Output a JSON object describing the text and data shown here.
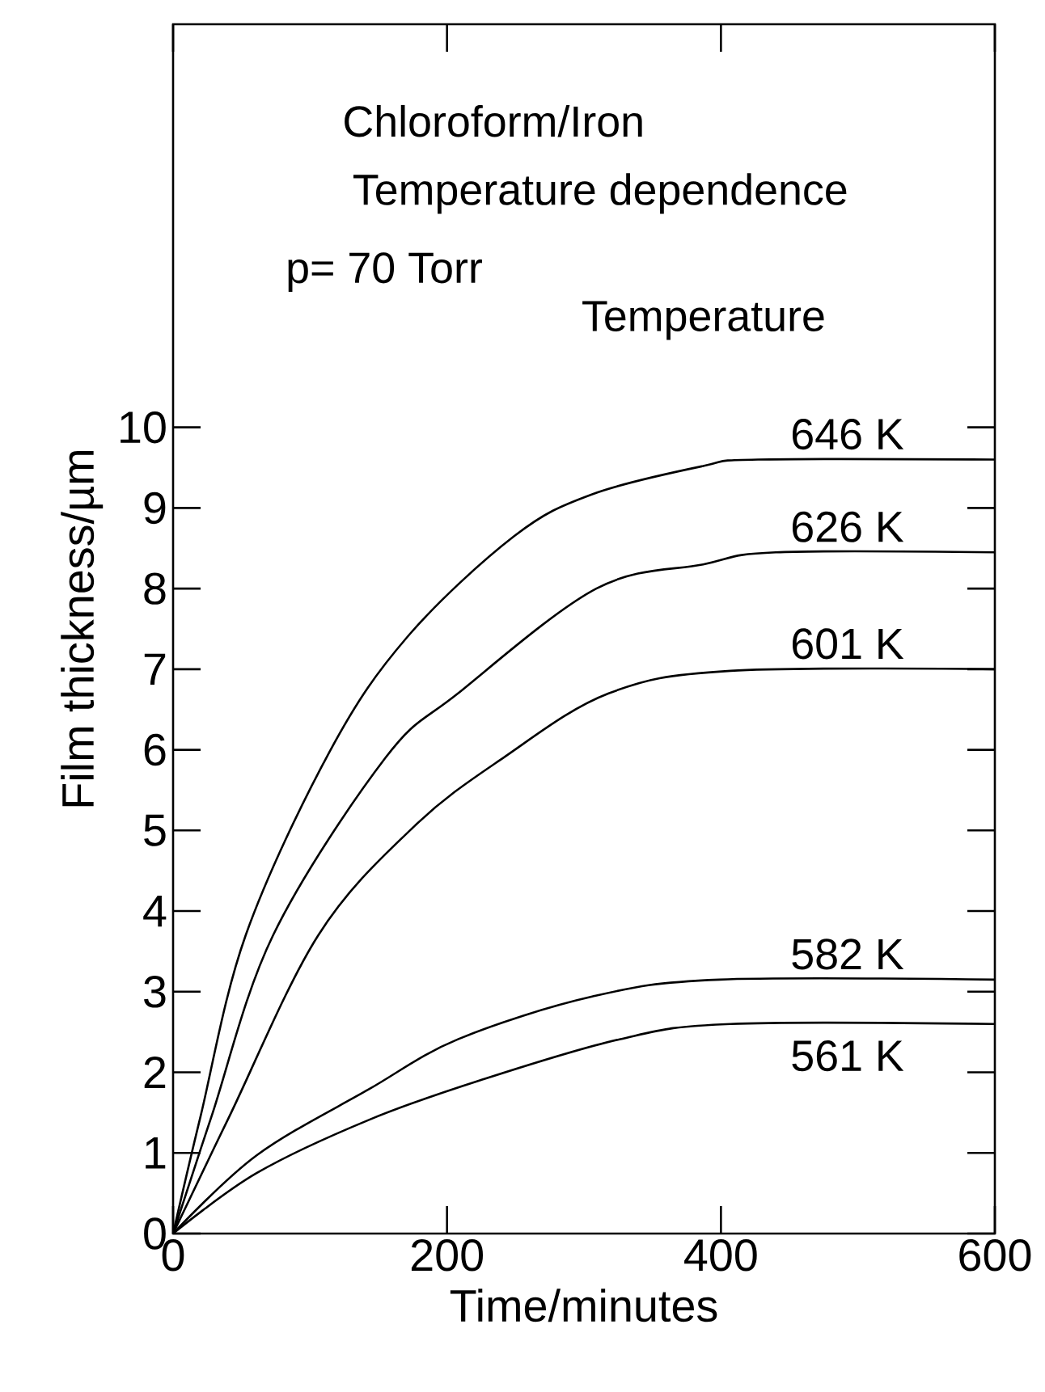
{
  "chart_data": {
    "type": "line",
    "title": "Chloroform/Iron",
    "subtitle": "Temperature dependence",
    "legend_title": "Temperature",
    "annotations": [
      "p= 70 Torr"
    ],
    "xlabel": "Time/minutes",
    "ylabel": "Film thickness/µm",
    "xlim": [
      0,
      600
    ],
    "ylim": [
      0,
      15
    ],
    "xticks": [
      0,
      200,
      400,
      600
    ],
    "yticks": [
      0,
      1,
      2,
      3,
      4,
      5,
      6,
      7,
      8,
      9,
      10
    ],
    "legend": "right",
    "grid": false,
    "marker": "none",
    "line_style": "solid",
    "series": [
      {
        "name": "646 K",
        "color": "#000000",
        "x": [
          0,
          20,
          53,
          115,
          171,
          249,
          306,
          387,
          427,
          600
        ],
        "values": [
          0,
          1.45,
          3.7,
          6.0,
          7.4,
          8.65,
          9.17,
          9.52,
          9.6,
          9.6
        ]
      },
      {
        "name": "626 K",
        "color": "#000000",
        "x": [
          0,
          28,
          73,
          155,
          208,
          309,
          387,
          440,
          600
        ],
        "values": [
          0,
          1.45,
          3.7,
          5.9,
          6.7,
          8.0,
          8.3,
          8.45,
          8.45
        ]
      },
      {
        "name": "601 K",
        "color": "#000000",
        "x": [
          0,
          41,
          106,
          176,
          241,
          318,
          407,
          600
        ],
        "values": [
          0,
          1.45,
          3.7,
          5.05,
          5.9,
          6.7,
          6.98,
          7.0
        ]
      },
      {
        "name": "582 K",
        "color": "#000000",
        "x": [
          0,
          61,
          143,
          208,
          306,
          399,
          600
        ],
        "values": [
          0,
          0.97,
          1.79,
          2.41,
          2.94,
          3.15,
          3.15
        ]
      },
      {
        "name": "561 K",
        "color": "#000000",
        "x": [
          0,
          61,
          143,
          224,
          326,
          407,
          600
        ],
        "values": [
          0,
          0.75,
          1.41,
          1.9,
          2.41,
          2.6,
          2.6
        ]
      }
    ]
  }
}
